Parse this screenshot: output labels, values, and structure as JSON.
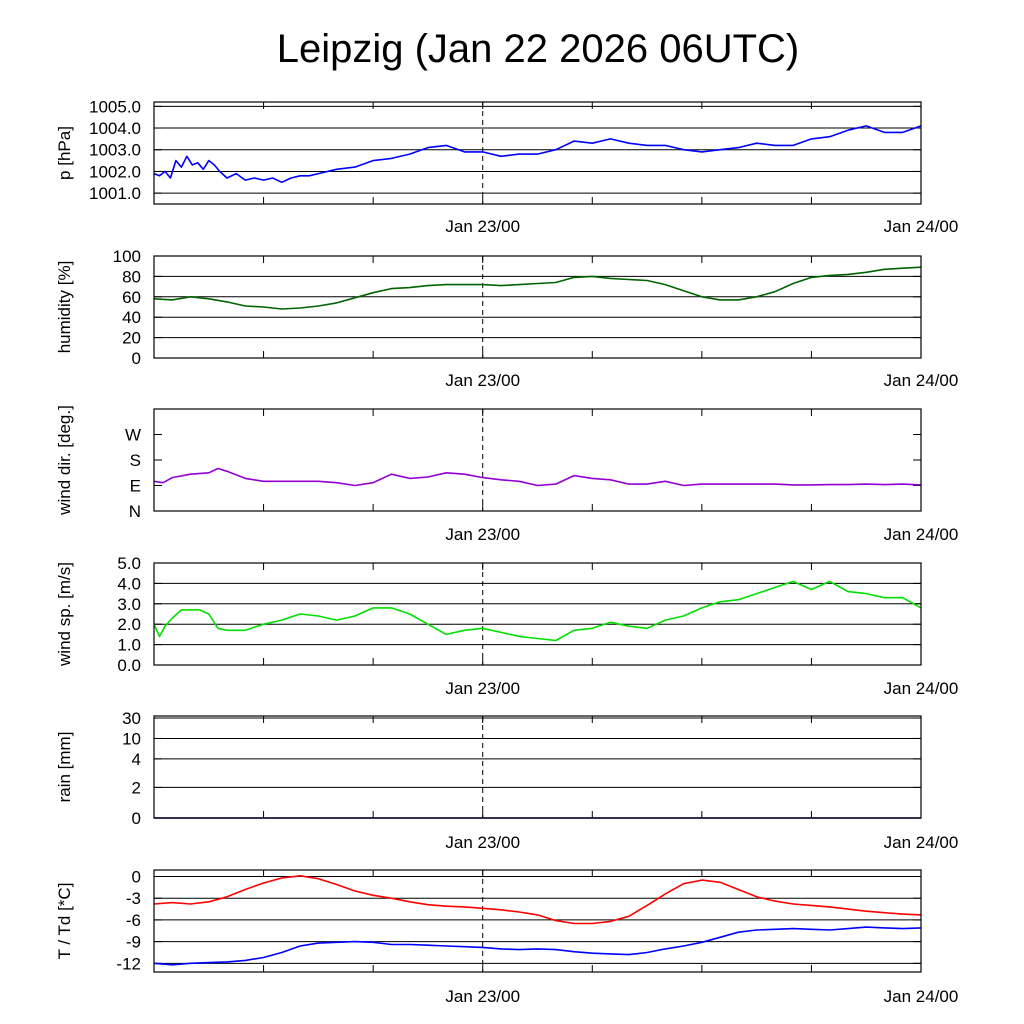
{
  "title": "Leipzig (Jan 22 2026 06UTC)",
  "chart_data": [
    {
      "type": "line",
      "ylabel": "p [hPa]",
      "ylim": [
        1000.5,
        1005.2
      ],
      "yticks": [
        1001.0,
        1002.0,
        1003.0,
        1004.0,
        1005.0
      ],
      "ytick_labels": [
        "1001.0",
        "1002.0",
        "1003.0",
        "1004.0",
        "1005.0"
      ],
      "grid": true,
      "xlim": [
        0,
        42
      ],
      "xtick_labels": [
        "Jan 23/00",
        "Jan 24/00"
      ],
      "series": [
        {
          "color": "#0000ff",
          "x": [
            0,
            0.3,
            0.6,
            0.9,
            1.2,
            1.5,
            1.8,
            2.1,
            2.4,
            2.7,
            3.0,
            3.3,
            3.6,
            4,
            4.5,
            5,
            5.5,
            6,
            6.5,
            7,
            7.5,
            8,
            8.5,
            9,
            10,
            11,
            12,
            13,
            14,
            15,
            16,
            17,
            18,
            19,
            20,
            21,
            22,
            23,
            24,
            25,
            26,
            27,
            28,
            29,
            30,
            31,
            32,
            33,
            34,
            35,
            36,
            37,
            38,
            39,
            40,
            41,
            42
          ],
          "y": [
            1001.9,
            1001.8,
            1002.0,
            1001.7,
            1002.5,
            1002.2,
            1002.7,
            1002.3,
            1002.4,
            1002.1,
            1002.5,
            1002.3,
            1002.0,
            1001.7,
            1001.9,
            1001.6,
            1001.7,
            1001.6,
            1001.7,
            1001.5,
            1001.7,
            1001.8,
            1001.8,
            1001.9,
            1002.1,
            1002.2,
            1002.5,
            1002.6,
            1002.8,
            1003.1,
            1003.2,
            1002.9,
            1002.9,
            1002.7,
            1002.8,
            1002.8,
            1003.0,
            1003.4,
            1003.3,
            1003.5,
            1003.3,
            1003.2,
            1003.2,
            1003.0,
            1002.9,
            1003.0,
            1003.1,
            1003.3,
            1003.2,
            1003.2,
            1003.5,
            1003.6,
            1003.9,
            1004.1,
            1003.8,
            1003.8,
            1004.1
          ]
        }
      ]
    },
    {
      "type": "line",
      "ylabel": "humidity [%]",
      "ylim": [
        0,
        100
      ],
      "yticks": [
        0,
        20,
        40,
        60,
        80,
        100
      ],
      "ytick_labels": [
        "0",
        "20",
        "40",
        "60",
        "80",
        "100"
      ],
      "grid": true,
      "xlim": [
        0,
        42
      ],
      "xtick_labels": [
        "Jan 23/00",
        "Jan 24/00"
      ],
      "series": [
        {
          "color": "#006400",
          "x": [
            0,
            1,
            2,
            3,
            4,
            5,
            6,
            7,
            8,
            9,
            10,
            11,
            12,
            13,
            14,
            15,
            16,
            17,
            18,
            19,
            20,
            21,
            22,
            23,
            24,
            25,
            26,
            27,
            28,
            29,
            30,
            31,
            32,
            33,
            34,
            35,
            36,
            37,
            38,
            39,
            40,
            41,
            42
          ],
          "y": [
            58,
            57,
            60,
            58,
            55,
            51,
            50,
            48,
            49,
            51,
            54,
            59,
            64,
            68,
            69,
            71,
            72,
            72,
            72,
            71,
            72,
            73,
            74,
            79,
            80,
            78,
            77,
            76,
            72,
            66,
            60,
            57,
            57,
            60,
            65,
            73,
            79,
            81,
            82,
            84,
            87,
            88,
            89
          ]
        }
      ]
    },
    {
      "type": "line",
      "ylabel": "wind dir. [deg.]",
      "ylim": [
        0,
        360
      ],
      "yticks": [
        0,
        90,
        180,
        270
      ],
      "ytick_labels": [
        "N",
        "E",
        "S",
        "W"
      ],
      "grid": false,
      "xlim": [
        0,
        42
      ],
      "xtick_labels": [
        "Jan 23/00",
        "Jan 24/00"
      ],
      "series": [
        {
          "color": "#9400d3",
          "x": [
            0,
            0.5,
            1,
            2,
            3,
            3.5,
            4,
            5,
            6,
            7,
            8,
            9,
            10,
            11,
            12,
            13,
            14,
            15,
            16,
            17,
            18,
            19,
            20,
            21,
            22,
            23,
            24,
            25,
            26,
            27,
            28,
            29,
            30,
            31,
            32,
            33,
            34,
            35,
            36,
            37,
            38,
            39,
            40,
            41,
            42
          ],
          "y": [
            105,
            100,
            118,
            130,
            135,
            150,
            140,
            115,
            105,
            105,
            105,
            105,
            100,
            90,
            100,
            130,
            115,
            120,
            135,
            130,
            118,
            110,
            105,
            90,
            95,
            125,
            115,
            110,
            95,
            95,
            105,
            90,
            95,
            95,
            95,
            95,
            95,
            92,
            92,
            93,
            93,
            95,
            93,
            95,
            92
          ]
        }
      ]
    },
    {
      "type": "line",
      "ylabel": "wind sp. [m/s]",
      "ylim": [
        0,
        5
      ],
      "yticks": [
        0.0,
        1.0,
        2.0,
        3.0,
        4.0,
        5.0
      ],
      "ytick_labels": [
        "0.0",
        "1.0",
        "2.0",
        "3.0",
        "4.0",
        "5.0"
      ],
      "grid": true,
      "xlim": [
        0,
        42
      ],
      "xtick_labels": [
        "Jan 23/00",
        "Jan 24/00"
      ],
      "series": [
        {
          "color": "#00e000",
          "x": [
            0,
            0.3,
            0.6,
            1,
            1.5,
            2,
            2.5,
            3,
            3.5,
            4,
            5,
            6,
            7,
            8,
            9,
            10,
            11,
            12,
            13,
            14,
            15,
            16,
            17,
            18,
            19,
            20,
            21,
            22,
            23,
            24,
            25,
            26,
            27,
            28,
            29,
            30,
            31,
            32,
            33,
            34,
            35,
            36,
            37,
            38,
            39,
            40,
            41,
            42
          ],
          "y": [
            2.0,
            1.4,
            1.9,
            2.3,
            2.7,
            2.7,
            2.7,
            2.5,
            1.8,
            1.7,
            1.7,
            2.0,
            2.2,
            2.5,
            2.4,
            2.2,
            2.4,
            2.8,
            2.8,
            2.5,
            2.0,
            1.5,
            1.7,
            1.8,
            1.6,
            1.4,
            1.3,
            1.2,
            1.7,
            1.8,
            2.1,
            1.9,
            1.8,
            2.2,
            2.4,
            2.8,
            3.1,
            3.2,
            3.5,
            3.8,
            4.1,
            3.7,
            4.1,
            3.6,
            3.5,
            3.3,
            3.3,
            2.8
          ]
        }
      ]
    },
    {
      "type": "line",
      "ylabel": "rain [mm]",
      "yticks": [
        0,
        2,
        4,
        10,
        30
      ],
      "ytick_labels": [
        "0",
        "2",
        "4",
        "10",
        "30"
      ],
      "grid": true,
      "xlim": [
        0,
        42
      ],
      "xtick_labels": [
        "Jan 23/00",
        "Jan 24/00"
      ],
      "series": [
        {
          "color": "#000080",
          "x": [
            0,
            42
          ],
          "y": [
            0,
            0
          ]
        }
      ]
    },
    {
      "type": "line",
      "ylabel": "T / Td [*C]",
      "ylim": [
        -13.2,
        0.9
      ],
      "yticks": [
        -12,
        -9,
        -6,
        -3,
        0
      ],
      "ytick_labels": [
        "-12",
        "-9",
        "-6",
        "-3",
        "0"
      ],
      "grid": true,
      "xlim": [
        0,
        42
      ],
      "xtick_labels": [
        "Jan 23/00",
        "Jan 24/00"
      ],
      "series": [
        {
          "color": "#ff0000",
          "x": [
            0,
            1,
            2,
            3,
            4,
            5,
            6,
            7,
            8,
            9,
            10,
            11,
            12,
            13,
            14,
            15,
            16,
            17,
            18,
            19,
            20,
            21,
            22,
            23,
            24,
            25,
            26,
            27,
            28,
            29,
            30,
            31,
            32,
            33,
            34,
            35,
            36,
            37,
            38,
            39,
            40,
            41,
            42
          ],
          "y": [
            -3.8,
            -3.6,
            -3.8,
            -3.5,
            -2.8,
            -1.8,
            -0.9,
            -0.2,
            0.1,
            -0.3,
            -1.1,
            -2.0,
            -2.6,
            -3.0,
            -3.5,
            -3.9,
            -4.1,
            -4.2,
            -4.4,
            -4.6,
            -4.9,
            -5.3,
            -6.1,
            -6.5,
            -6.5,
            -6.2,
            -5.5,
            -4.0,
            -2.4,
            -1.0,
            -0.5,
            -0.8,
            -1.8,
            -2.8,
            -3.4,
            -3.8,
            -4.0,
            -4.2,
            -4.5,
            -4.8,
            -5.0,
            -5.2,
            -5.3
          ]
        },
        {
          "color": "#0000ff",
          "x": [
            0,
            1,
            2,
            3,
            4,
            5,
            6,
            7,
            8,
            9,
            10,
            11,
            12,
            13,
            14,
            15,
            16,
            17,
            18,
            19,
            20,
            21,
            22,
            23,
            24,
            25,
            26,
            27,
            28,
            29,
            30,
            31,
            32,
            33,
            34,
            35,
            36,
            37,
            38,
            39,
            40,
            41,
            42
          ],
          "y": [
            -12.0,
            -12.2,
            -12.0,
            -11.9,
            -11.8,
            -11.6,
            -11.2,
            -10.5,
            -9.6,
            -9.2,
            -9.1,
            -9.0,
            -9.1,
            -9.4,
            -9.4,
            -9.5,
            -9.6,
            -9.7,
            -9.8,
            -10.0,
            -10.1,
            -10.0,
            -10.1,
            -10.4,
            -10.6,
            -10.7,
            -10.8,
            -10.5,
            -10.0,
            -9.6,
            -9.1,
            -8.4,
            -7.7,
            -7.4,
            -7.3,
            -7.2,
            -7.3,
            -7.4,
            -7.2,
            -7.0,
            -7.1,
            -7.2,
            -7.1
          ]
        }
      ]
    }
  ]
}
